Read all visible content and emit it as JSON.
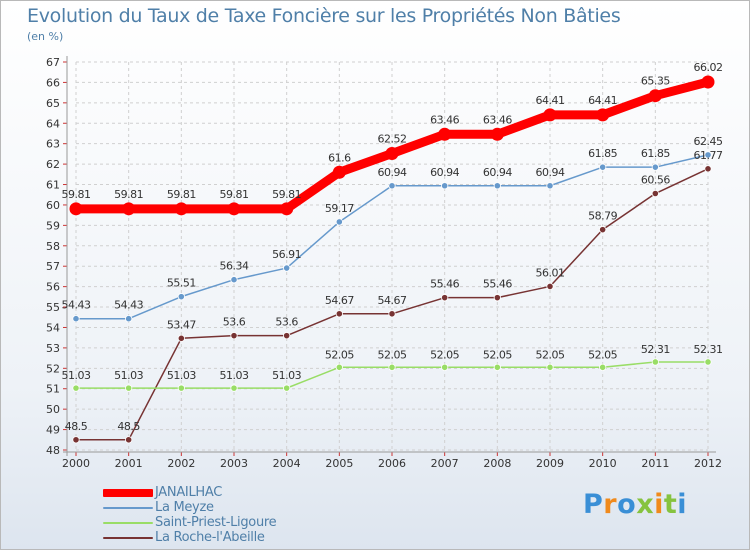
{
  "title": "Evolution du Taux de Taxe Foncière sur les Propriétés Non Bâties",
  "subtitle": "(en %)",
  "logo_text": "Proxiti",
  "colors": {
    "title": "#4f7fa8",
    "grid": "#d0d0d0",
    "axis_text": "#333333"
  },
  "chart_data": {
    "type": "line",
    "title": "Evolution du Taux de Taxe Foncière sur les Propriétés Non Bâties",
    "ylabel": "(en %)",
    "xlabel": "",
    "x": [
      "2000",
      "2001",
      "2002",
      "2003",
      "2004",
      "2005",
      "2006",
      "2007",
      "2008",
      "2009",
      "2010",
      "2011",
      "2012"
    ],
    "ylim": [
      48,
      67
    ],
    "yticks": [
      48,
      49,
      50,
      51,
      52,
      53,
      54,
      55,
      56,
      57,
      58,
      59,
      60,
      61,
      62,
      63,
      64,
      65,
      66,
      67
    ],
    "grid": "horizontal-dashed",
    "legend_position": "bottom-left",
    "series": [
      {
        "name": "JANAILHAC",
        "color": "#ff0000",
        "values": [
          59.81,
          59.81,
          59.81,
          59.81,
          59.81,
          61.6,
          62.52,
          63.46,
          63.46,
          64.41,
          64.41,
          65.35,
          66.02
        ],
        "labels": [
          "59.81",
          "59.81",
          "59.81",
          "59.81",
          "59.81",
          "61.6",
          "62.52",
          "63.46",
          "63.46",
          "64.41",
          "64.41",
          "65.35",
          "66.02"
        ]
      },
      {
        "name": "La Meyze",
        "color": "#6699cc",
        "values": [
          54.43,
          54.43,
          55.51,
          56.34,
          56.91,
          59.17,
          60.94,
          60.94,
          60.94,
          60.94,
          61.85,
          61.85,
          62.45
        ],
        "labels": [
          "54.43",
          "54.43",
          "55.51",
          "56.34",
          "56.91",
          "59.17",
          "60.94",
          "60.94",
          "60.94",
          "60.94",
          "61.85",
          "61.85",
          "62.45"
        ]
      },
      {
        "name": "Saint-Priest-Ligoure",
        "color": "#99dd66",
        "values": [
          51.03,
          51.03,
          51.03,
          51.03,
          51.03,
          52.05,
          52.05,
          52.05,
          52.05,
          52.05,
          52.05,
          52.31,
          52.31
        ],
        "labels": [
          "51.03",
          "51.03",
          "51.03",
          "51.03",
          "51.03",
          "52.05",
          "52.05",
          "52.05",
          "52.05",
          "52.05",
          "52.05",
          "52.31",
          "52.31"
        ]
      },
      {
        "name": "La Roche-l'Abeille",
        "color": "#773333",
        "values": [
          48.5,
          48.5,
          53.47,
          53.6,
          53.6,
          54.67,
          54.67,
          55.46,
          55.46,
          56.01,
          58.79,
          60.56,
          61.77
        ],
        "labels": [
          "48.5",
          "48.5",
          "53.47",
          "53.6",
          "53.6",
          "54.67",
          "54.67",
          "55.46",
          "55.46",
          "56.01",
          "58.79",
          "60.56",
          "61.77"
        ]
      }
    ]
  }
}
